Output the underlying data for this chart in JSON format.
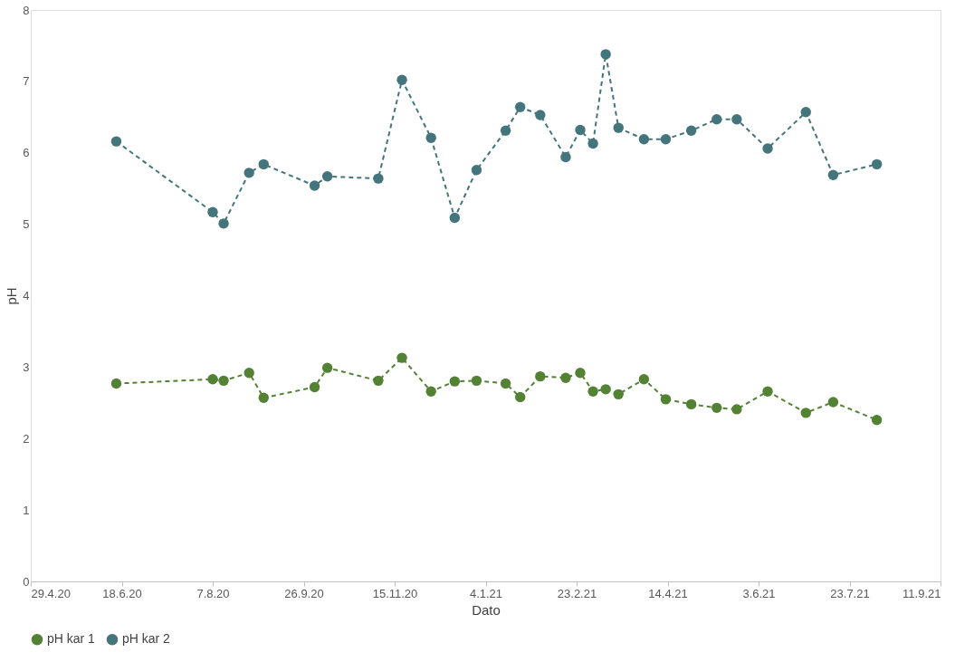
{
  "chart_data": {
    "type": "line",
    "xlabel": "Dato",
    "ylabel": "pH",
    "x": [
      "2020-06-15",
      "2020-08-07",
      "2020-08-13",
      "2020-08-27",
      "2020-09-04",
      "2020-10-02",
      "2020-10-09",
      "2020-11-06",
      "2020-11-19",
      "2020-12-05",
      "2020-12-18",
      "2020-12-30",
      "2021-01-15",
      "2021-01-23",
      "2021-02-03",
      "2021-02-17",
      "2021-02-25",
      "2021-03-04",
      "2021-03-11",
      "2021-03-18",
      "2021-04-01",
      "2021-04-13",
      "2021-04-27",
      "2021-05-11",
      "2021-05-22",
      "2021-06-08",
      "2021-06-29",
      "2021-07-14",
      "2021-08-07"
    ],
    "series": [
      {
        "name": "pH kar 1",
        "color": "#548235",
        "values": [
          2.77,
          2.83,
          2.81,
          2.92,
          2.57,
          2.72,
          2.99,
          2.81,
          3.13,
          2.66,
          2.8,
          2.81,
          2.77,
          2.58,
          2.87,
          2.85,
          2.92,
          2.66,
          2.69,
          2.62,
          2.83,
          2.55,
          2.48,
          2.43,
          2.41,
          2.66,
          2.36,
          2.51,
          2.26
        ]
      },
      {
        "name": "pH kar 2",
        "color": "#44757c",
        "values": [
          6.16,
          5.17,
          5.01,
          5.72,
          5.84,
          5.54,
          5.67,
          5.64,
          7.02,
          6.21,
          5.09,
          5.76,
          6.31,
          6.64,
          6.53,
          5.94,
          6.32,
          6.13,
          7.38,
          6.35,
          6.19,
          6.19,
          6.31,
          6.47,
          6.47,
          6.06,
          6.57,
          5.69,
          5.84
        ]
      }
    ],
    "xlim": [
      "2020-04-29",
      "2021-09-11"
    ],
    "xticks": [
      {
        "value": "2020-04-29",
        "label": "29.4.20"
      },
      {
        "value": "2020-06-18",
        "label": "18.6.20"
      },
      {
        "value": "2020-08-07",
        "label": "7.8.20"
      },
      {
        "value": "2020-09-26",
        "label": "26.9.20"
      },
      {
        "value": "2020-11-15",
        "label": "15.11.20"
      },
      {
        "value": "2021-01-04",
        "label": "4.1.21"
      },
      {
        "value": "2021-02-23",
        "label": "23.2.21"
      },
      {
        "value": "2021-04-14",
        "label": "14.4.21"
      },
      {
        "value": "2021-06-03",
        "label": "3.6.21"
      },
      {
        "value": "2021-07-23",
        "label": "23.7.21"
      },
      {
        "value": "2021-09-11",
        "label": "11.9.21"
      }
    ],
    "ylim": [
      0,
      8
    ],
    "yticks": [
      0,
      1,
      2,
      3,
      4,
      5,
      6,
      7,
      8
    ],
    "grid": false,
    "legend": "bottom",
    "marker": "circle",
    "line_style": "dashed"
  }
}
